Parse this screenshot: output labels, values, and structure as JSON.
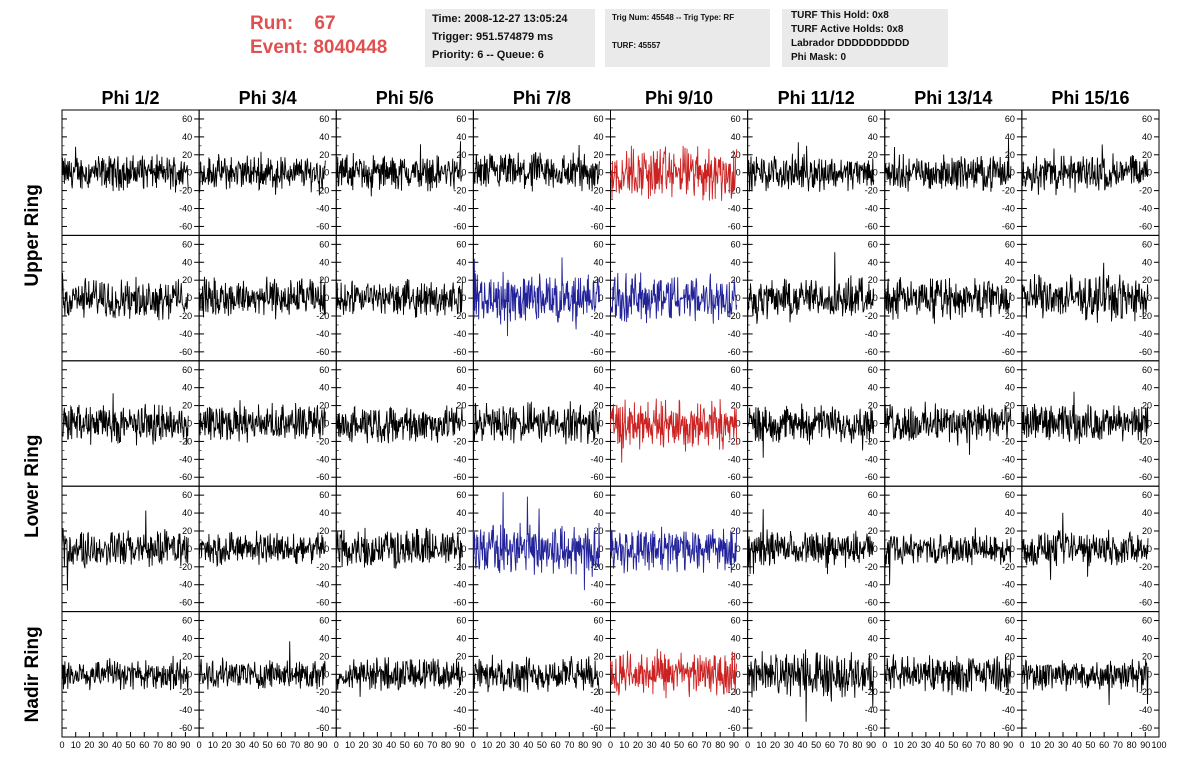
{
  "header": {
    "run_label": "Run:",
    "run_value": "67",
    "event_label": "Event:",
    "event_value": "8040448",
    "time_info": [
      "Time: 2008-12-27 13:05:24",
      "Trigger: 951.574879 ms",
      "Priority: 6 -- Queue: 6"
    ],
    "trigger_info": [
      "Trig Num: 45548 -- Trig Type: RF",
      "TURF: 45557"
    ],
    "turf_info": [
      "TURF This Hold: 0x8",
      "TURF Active Holds: 0x8",
      "Labrador DDDDDDDDDD",
      "Phi Mask: 0"
    ]
  },
  "colors": {
    "header_text": "#e05050",
    "info_background": "#eaeaea",
    "trace_default": "#000000",
    "trace_red": "#cc2222",
    "trace_blue": "#22229a"
  },
  "chart_data": {
    "type": "line",
    "title": "",
    "xlabel": "",
    "ylabel": "",
    "columns": [
      "Phi 1/2",
      "Phi 3/4",
      "Phi 5/6",
      "Phi 7/8",
      "Phi 9/10",
      "Phi 11/12",
      "Phi 13/14",
      "Phi 15/16"
    ],
    "ring_labels": [
      {
        "label": "Upper Ring",
        "rows": [
          0,
          1
        ]
      },
      {
        "label": "Lower Ring",
        "rows": [
          2,
          3
        ]
      },
      {
        "label": "Nadir Ring",
        "rows": [
          4,
          4
        ]
      }
    ],
    "xlim": [
      0,
      100
    ],
    "ylim": [
      -70,
      70
    ],
    "y_ticks": [
      -60,
      -40,
      -20,
      0,
      20,
      40,
      60
    ],
    "x_ticks": [
      0,
      10,
      20,
      30,
      40,
      50,
      60,
      70,
      80,
      90
    ],
    "x_tick_last": "100",
    "trace_samples": 260,
    "trace_x_range": [
      0,
      92
    ],
    "rows": [
      {
        "amplitudes": [
          14,
          14,
          14,
          16,
          22,
          14,
          14,
          15
        ],
        "colors": [
          "black",
          "black",
          "black",
          "black",
          "red",
          "black",
          "black",
          "black"
        ]
      },
      {
        "amplitudes": [
          16,
          16,
          14,
          20,
          20,
          16,
          16,
          18
        ],
        "colors": [
          "black",
          "black",
          "black",
          "blue",
          "blue",
          "black",
          "black",
          "black"
        ]
      },
      {
        "amplitudes": [
          16,
          15,
          15,
          16,
          20,
          15,
          16,
          15
        ],
        "colors": [
          "black",
          "black",
          "black",
          "black",
          "red",
          "black",
          "black",
          "black"
        ]
      },
      {
        "amplitudes": [
          15,
          13,
          16,
          21,
          18,
          14,
          12,
          14
        ],
        "colors": [
          "black",
          "black",
          "black",
          "blue",
          "blue",
          "black",
          "black",
          "black"
        ]
      },
      {
        "amplitudes": [
          13,
          12,
          13,
          14,
          18,
          18,
          15,
          13
        ],
        "colors": [
          "black",
          "black",
          "black",
          "black",
          "red",
          "black",
          "black",
          "black"
        ]
      }
    ]
  }
}
